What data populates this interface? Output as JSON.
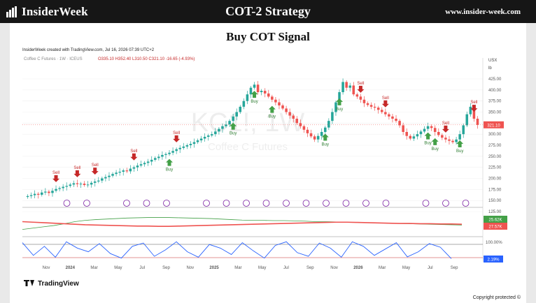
{
  "header": {
    "brand": "InsiderWeek",
    "title": "COT-2 Strategy",
    "site": "www.insider-week.com"
  },
  "chart_title": "Buy COT Signal",
  "tv": {
    "created": "InsiderWeek created with TradingView.com, Jul 16, 2026 07:39 UTC+2",
    "symbol": "Coffee C Futures · 1W · ICEUS",
    "ohlc": "O335.10  H352.40  L310.50  C321.10  -16.65 (-4.93%)",
    "currency": "USX",
    "unit": "lb",
    "watermark_big": "KC1!, 1W",
    "watermark_small": "Coffee C Futures",
    "brand": "TradingView"
  },
  "copyright": "Copyright protected ©",
  "colors": {
    "up": "#26a69a",
    "down": "#ef5350",
    "signal_sell": "#c62828",
    "signal_buy": "#43a047",
    "osc_blue": "#2962ff"
  },
  "chart_data": [
    {
      "type": "candlestick",
      "price_axis": {
        "min": 125,
        "max": 425,
        "ticks": [
          425,
          400,
          375,
          350,
          325,
          300,
          275,
          250,
          225,
          200,
          175,
          150,
          125
        ]
      },
      "current_price": 321.1,
      "current_price_label": "321.10",
      "time_labels": [
        "Nov",
        "2024",
        "Mar",
        "May",
        "Jul",
        "Sep",
        "Nov",
        "2025",
        "Mar",
        "May",
        "Jul",
        "Sep",
        "Nov",
        "2026",
        "Mar",
        "May",
        "Jul",
        "Sep"
      ],
      "closes": [
        160,
        162,
        165,
        163,
        168,
        170,
        167,
        172,
        176,
        178,
        181,
        183,
        186,
        189,
        187,
        188,
        185,
        186,
        190,
        193,
        195,
        200,
        203,
        206,
        210,
        213,
        215,
        218,
        216,
        222,
        225,
        229,
        232,
        235,
        238,
        242,
        246,
        249,
        253,
        255,
        258,
        262,
        266,
        269,
        272,
        275,
        278,
        282,
        286,
        290,
        294,
        297,
        300,
        306,
        312,
        318,
        322,
        330,
        340,
        350,
        362,
        375,
        390,
        405,
        412,
        395,
        398,
        392,
        385,
        378,
        372,
        365,
        358,
        350,
        342,
        335,
        325,
        318,
        310,
        302,
        295,
        288,
        296,
        305,
        315,
        330,
        350,
        372,
        395,
        418,
        405,
        410,
        390,
        385,
        378,
        370,
        366,
        362,
        360,
        355,
        350,
        345,
        340,
        335,
        330,
        320,
        305,
        296,
        290,
        295,
        300,
        306,
        312,
        318,
        314,
        305,
        298,
        292,
        288,
        285,
        282,
        288,
        300,
        320,
        345,
        362,
        335,
        321
      ],
      "signals": [
        {
          "label": "Sell",
          "type": "sell",
          "bar": 8
        },
        {
          "label": "Sell",
          "type": "sell",
          "bar": 14
        },
        {
          "label": "Sell",
          "type": "sell",
          "bar": 19
        },
        {
          "label": "Sell",
          "type": "sell",
          "bar": 30
        },
        {
          "label": "Buy",
          "type": "buy",
          "bar": 40
        },
        {
          "label": "Sell",
          "type": "sell",
          "bar": 42
        },
        {
          "label": "Buy",
          "type": "buy",
          "bar": 58
        },
        {
          "label": "Buy",
          "type": "buy",
          "bar": 64
        },
        {
          "label": "Buy",
          "type": "buy",
          "bar": 69
        },
        {
          "label": "Buy",
          "type": "buy",
          "bar": 84
        },
        {
          "label": "Buy",
          "type": "buy",
          "bar": 88
        },
        {
          "label": "Sell",
          "type": "sell",
          "bar": 94
        },
        {
          "label": "Sell",
          "type": "sell",
          "bar": 101
        },
        {
          "label": "Buy",
          "type": "buy",
          "bar": 113
        },
        {
          "label": "Buy",
          "type": "buy",
          "bar": 115
        },
        {
          "label": "Sell",
          "type": "sell",
          "bar": 118
        },
        {
          "label": "Buy",
          "type": "buy",
          "bar": 122
        },
        {
          "label": "Sell",
          "type": "sell",
          "bar": 126
        }
      ]
    },
    {
      "type": "line",
      "series": [
        {
          "label": "25.62K",
          "color": "#43a047",
          "values": [
            0.2,
            0.25,
            0.3,
            0.35,
            0.42,
            0.5,
            0.55,
            0.58,
            0.6,
            0.62,
            0.64,
            0.65,
            0.66,
            0.66,
            0.66,
            0.65,
            0.64,
            0.63,
            0.62,
            0.6,
            0.58,
            0.56,
            0.55,
            0.55,
            0.54,
            0.54,
            0.53,
            0.52,
            0.5,
            0.5,
            0.49,
            0.48,
            0.47,
            0.46,
            0.45,
            0.44,
            0.43,
            0.42,
            0.41,
            0.4,
            0.39,
            0.38,
            0.37
          ]
        },
        {
          "label": "27.57K",
          "color": "#ef5350",
          "values": [
            0.5,
            0.48,
            0.46,
            0.44,
            0.42,
            0.4,
            0.38,
            0.37,
            0.36,
            0.35,
            0.34,
            0.33,
            0.33,
            0.32,
            0.32,
            0.33,
            0.34,
            0.35,
            0.36,
            0.37,
            0.38,
            0.39,
            0.4,
            0.41,
            0.42,
            0.43,
            0.44,
            0.45,
            0.46,
            0.47,
            0.48,
            0.48,
            0.47,
            0.46,
            0.45,
            0.44,
            0.43,
            0.43,
            0.42,
            0.42,
            0.41,
            0.41,
            0.4
          ]
        }
      ]
    },
    {
      "type": "line",
      "axis_tick": "100.00%",
      "series": [
        {
          "label": "2.19%",
          "color": "#2962ff",
          "values": [
            90,
            20,
            70,
            10,
            95,
            60,
            40,
            85,
            30,
            5,
            70,
            88,
            15,
            50,
            95,
            40,
            10,
            80,
            60,
            25,
            90,
            45,
            5,
            75,
            95,
            35,
            15,
            88,
            60,
            10,
            95,
            70,
            20,
            55,
            90,
            12,
            40,
            85,
            65,
            2
          ]
        }
      ]
    }
  ]
}
